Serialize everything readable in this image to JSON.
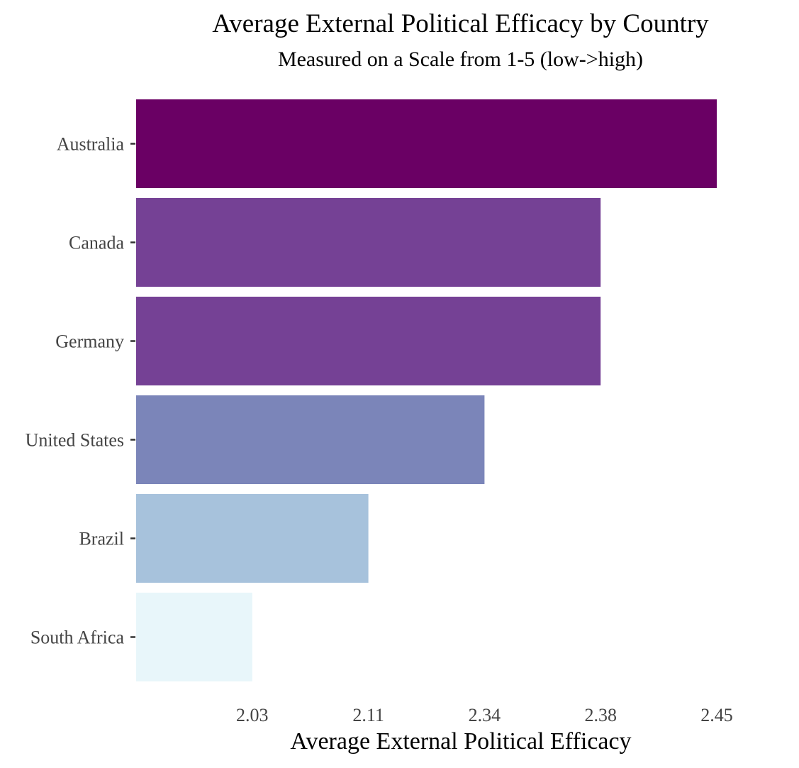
{
  "chart_data": {
    "type": "bar",
    "orientation": "horizontal",
    "title": "Average External Political Efficacy by Country",
    "subtitle": "Measured on a Scale from 1-5 (low->high)",
    "xlabel": "Average External Political Efficacy",
    "ylabel": "",
    "categories": [
      "Australia",
      "Canada",
      "Germany",
      "United States",
      "Brazil",
      "South Africa"
    ],
    "values": [
      2.45,
      2.38,
      2.38,
      2.34,
      2.11,
      2.03
    ],
    "bar_colors": [
      "#6a0064",
      "#754195",
      "#754195",
      "#7b85b9",
      "#a7c2dc",
      "#e8f6fa"
    ],
    "x_tick_labels": [
      "2.03",
      "2.11",
      "2.34",
      "2.38",
      "2.45"
    ],
    "x_tick_label_positions": [
      1,
      2,
      3,
      4,
      5
    ],
    "x_rank_range": [
      0,
      5
    ],
    "grid": false,
    "legend": "none"
  }
}
